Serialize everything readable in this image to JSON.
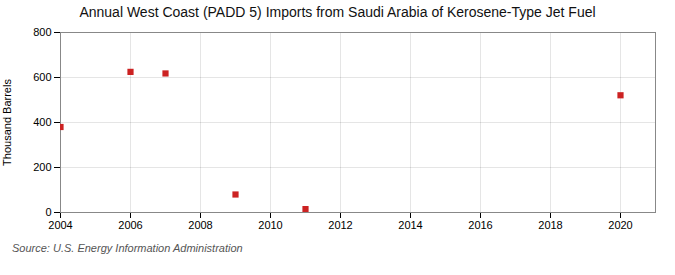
{
  "chart_data": {
    "type": "scatter",
    "title": "Annual West Coast (PADD 5) Imports from Saudi Arabia of Kerosene-Type Jet Fuel",
    "ylabel": "Thousand Barrels",
    "caption": "Source: U.S. Energy Information Administration",
    "x": [
      2004,
      2006,
      2007,
      2009,
      2011,
      2020
    ],
    "values": [
      380,
      625,
      618,
      80,
      15,
      521
    ],
    "color": "#cc2222",
    "marker": "square",
    "xlim": [
      2004,
      2021
    ],
    "xticks": [
      2004,
      2006,
      2008,
      2010,
      2012,
      2014,
      2016,
      2018,
      2020
    ],
    "ylim": [
      0,
      800
    ],
    "yticks": [
      0,
      200,
      400,
      600,
      800
    ],
    "grid": true
  }
}
